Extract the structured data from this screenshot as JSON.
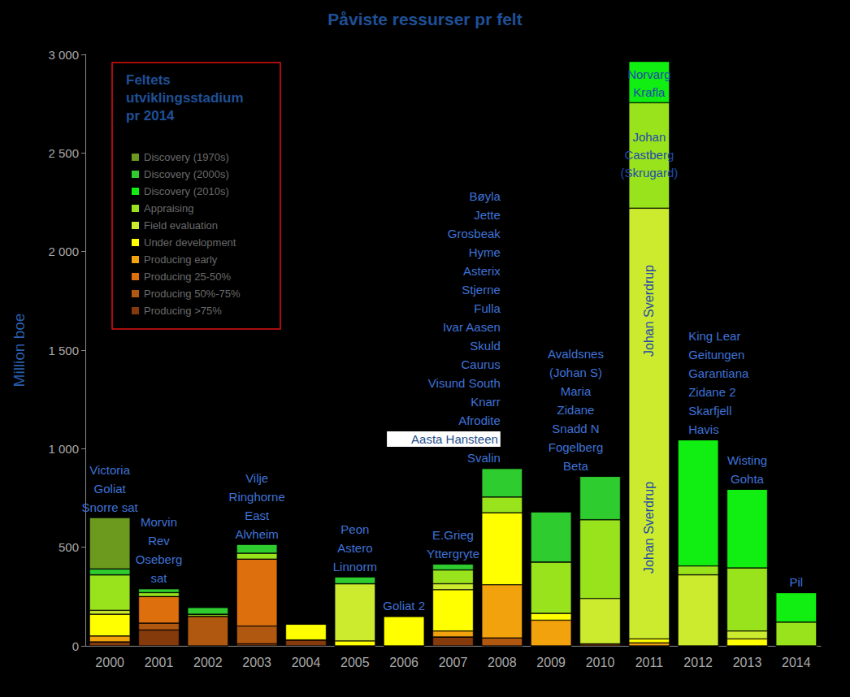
{
  "chart_data": {
    "type": "bar",
    "title": "Påviste ressurser pr felt",
    "y_label": "Million boe",
    "categories": [
      "2000",
      "2001",
      "2002",
      "2003",
      "2004",
      "2005",
      "2006",
      "2007",
      "2008",
      "2009",
      "2010",
      "2011",
      "2012",
      "2013",
      "2014"
    ],
    "stacked": true,
    "grid": false,
    "legend": "upper left",
    "legend_title": "Feltets utviklingsstadium pr 2014",
    "ylim": [
      0,
      3000
    ],
    "yticks": [
      0,
      500,
      {
        "value": 1000,
        "label": "1 000"
      },
      {
        "value": 1500,
        "label": "1 500"
      },
      {
        "value": 2000,
        "label": "2 000"
      },
      {
        "value": 2500,
        "label": "2 500"
      },
      {
        "value": 3000,
        "label": "3 000"
      }
    ],
    "series": [
      {
        "name": "Discovery (1970s)",
        "color": "#6b9a1f",
        "values": [
          260,
          0,
          0,
          0,
          0,
          0,
          0,
          0,
          0,
          0,
          0,
          0,
          0,
          0,
          0
        ]
      },
      {
        "name": "Discovery (2000s)",
        "color": "#2ecc2e",
        "values": [
          30,
          20,
          35,
          45,
          0,
          35,
          0,
          30,
          145,
          255,
          220,
          0,
          0,
          0,
          0
        ]
      },
      {
        "name": "Discovery (2010s)",
        "color": "#11ee11",
        "values": [
          0,
          0,
          0,
          0,
          0,
          0,
          0,
          0,
          0,
          0,
          0,
          210,
          640,
          400,
          150
        ]
      },
      {
        "name": "Appraising",
        "color": "#99e31c",
        "values": [
          180,
          20,
          10,
          30,
          0,
          0,
          0,
          70,
          80,
          260,
          400,
          535,
          45,
          320,
          120
        ]
      },
      {
        "name": "Field evaluation",
        "color": "#cdeb2e",
        "values": [
          20,
          0,
          0,
          0,
          0,
          290,
          0,
          30,
          0,
          0,
          230,
          2185,
          360,
          40,
          0
        ]
      },
      {
        "name": "Under development",
        "color": "#ffff00",
        "values": [
          110,
          0,
          0,
          0,
          80,
          25,
          150,
          210,
          365,
          35,
          0,
          20,
          0,
          35,
          0
        ]
      },
      {
        "name": "Producing early",
        "color": "#f2a20c",
        "values": [
          30,
          0,
          0,
          0,
          0,
          0,
          0,
          30,
          270,
          130,
          0,
          15,
          0,
          0,
          0
        ]
      },
      {
        "name": "Producing 25-50%",
        "color": "#dd6f0c",
        "values": [
          0,
          135,
          0,
          340,
          0,
          0,
          0,
          0,
          0,
          0,
          0,
          0,
          0,
          0,
          0
        ]
      },
      {
        "name": "Producing 50%-75%",
        "color": "#b0580f",
        "values": [
          0,
          35,
          150,
          90,
          0,
          0,
          0,
          0,
          40,
          0,
          0,
          0,
          0,
          0,
          0
        ]
      },
      {
        "name": "Producing >75%",
        "color": "#853a0c",
        "values": [
          20,
          80,
          0,
          10,
          30,
          0,
          0,
          45,
          0,
          0,
          10,
          0,
          0,
          0,
          0
        ]
      }
    ],
    "field_labels": [
      [
        "Victoria",
        "Goliat",
        "Snorre sat"
      ],
      [
        "Morvin",
        "Rev",
        "Oseberg",
        "sat"
      ],
      [],
      [
        "Vilje",
        "Ringhorne",
        "East",
        "Alvheim"
      ],
      [],
      [
        "Peon",
        "Astero",
        "Linnorm"
      ],
      [
        "Goliat 2"
      ],
      [
        "E.Grieg",
        "Yttergryte"
      ],
      [
        "Bøyla",
        "Jette",
        "Grosbeak",
        "Hyme",
        "Asterix",
        "Stjerne",
        "Fulla",
        "Ivar Aasen",
        "Skuld",
        "Caurus",
        "Visund South",
        "Knarr",
        "Afrodite",
        "Aasta Hansteen",
        "Svalin"
      ],
      [],
      [
        "Avaldsnes",
        "(Johan S)",
        "Maria",
        "Zidane",
        "Snadd N",
        "Fogelberg",
        "Beta"
      ],
      [],
      [
        "King Lear",
        "Geitungen",
        "Garantiana",
        "Zidane 2",
        "Skarfjell",
        "Havis"
      ],
      [
        "Wisting",
        "Gohta"
      ],
      [
        "Pil"
      ]
    ],
    "inner_labels": [
      {
        "text": "Norvarg",
        "category": "2011",
        "y": 2900
      },
      {
        "text": "Johan Sverdrup",
        "category": "2011",
        "y": 1700
      },
      {
        "text": "Johan",
        "category": "2011",
        "y": 2580
      },
      {
        "text": "Castberg",
        "category": "2011",
        "y": 2490
      },
      {
        "text": "(Skrugard)",
        "category": "2011",
        "y": 2400
      },
      {
        "text": "Krafla",
        "category": "2011",
        "y": 2810
      },
      {
        "text": "Johan Sverdrup",
        "category": "2011",
        "y": 600
      }
    ]
  }
}
